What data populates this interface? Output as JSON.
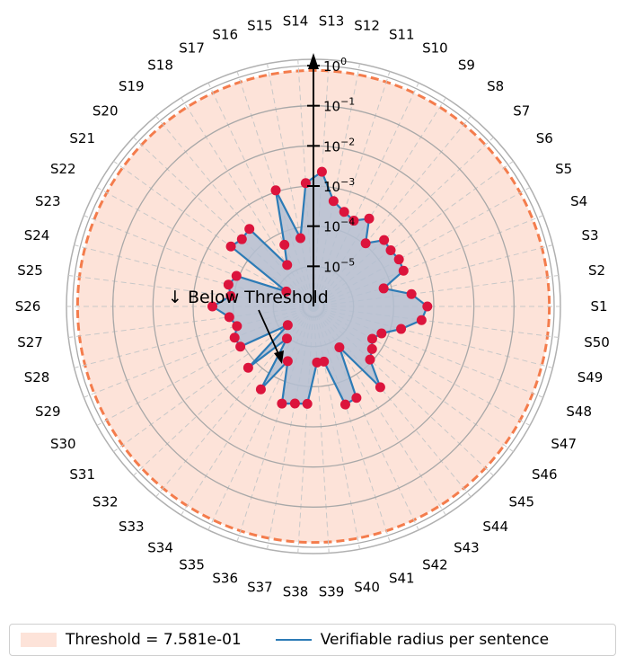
{
  "chart_data": {
    "type": "polar-line",
    "radial_scale": "log",
    "radial_range": [
      1e-06,
      1
    ],
    "radial_ticks": [
      {
        "value": 1,
        "base": "10",
        "exp": "0"
      },
      {
        "value": 0.1,
        "base": "10",
        "exp": "−1"
      },
      {
        "value": 0.01,
        "base": "10",
        "exp": "−2"
      },
      {
        "value": 0.001,
        "base": "10",
        "exp": "−3"
      },
      {
        "value": 0.0001,
        "base": "10",
        "exp": "−4"
      },
      {
        "value": 1e-05,
        "base": "10",
        "exp": "−5"
      }
    ],
    "categories": [
      "S1",
      "S2",
      "S3",
      "S4",
      "S5",
      "S6",
      "S7",
      "S8",
      "S9",
      "S10",
      "S11",
      "S12",
      "S13",
      "S14",
      "S15",
      "S16",
      "S17",
      "S18",
      "S19",
      "S20",
      "S21",
      "S22",
      "S23",
      "S24",
      "S25",
      "S26",
      "S27",
      "S28",
      "S29",
      "S30",
      "S31",
      "S32",
      "S33",
      "S34",
      "S35",
      "S36",
      "S37",
      "S38",
      "S39",
      "S40",
      "S41",
      "S42",
      "S43",
      "S44",
      "S45",
      "S46",
      "S47",
      "S48",
      "S49",
      "S50"
    ],
    "series": [
      {
        "name": "Verifiable radius per sentence",
        "values": [
          0.00069,
          0.00029,
          6.4e-05,
          0.00026,
          0.00027,
          0.00024,
          0.00026,
          0.00011,
          0.00039,
          0.00023,
          0.0003,
          0.00047,
          0.0023,
          0.0012,
          5.4e-05,
          0.0011,
          5e-05,
          1.67e-05,
          0.00032,
          0.00028,
          0.00035,
          5.9e-06,
          0.000116,
          0.000154,
          0.00012,
          0.00033,
          0.00013,
          9.3e-05,
          0.00013,
          0.00012,
          6.2e-06,
          0.00017,
          1.09e-05,
          0.00028,
          3.2e-05,
          0.00035,
          0.00029,
          0.00027,
          2.5e-05,
          2.5e-05,
          0.00037,
          0.00033,
          1.61e-05,
          0.00041,
          8.6e-05,
          6.4e-05,
          4.7e-05,
          6.7e-05,
          0.00018,
          0.00052
        ],
        "line_color": "#2c7bb6",
        "marker_color": "#dc143c",
        "fill_color": "#b4c0d2"
      }
    ],
    "threshold": {
      "value": 0.7581,
      "label": "Threshold = 7.581e-01",
      "color": "#fde3d9",
      "line_color": "#f47c4c"
    },
    "annotation": {
      "text": "↓ Below Threshold"
    },
    "grid": true,
    "legend_position": "bottom"
  }
}
